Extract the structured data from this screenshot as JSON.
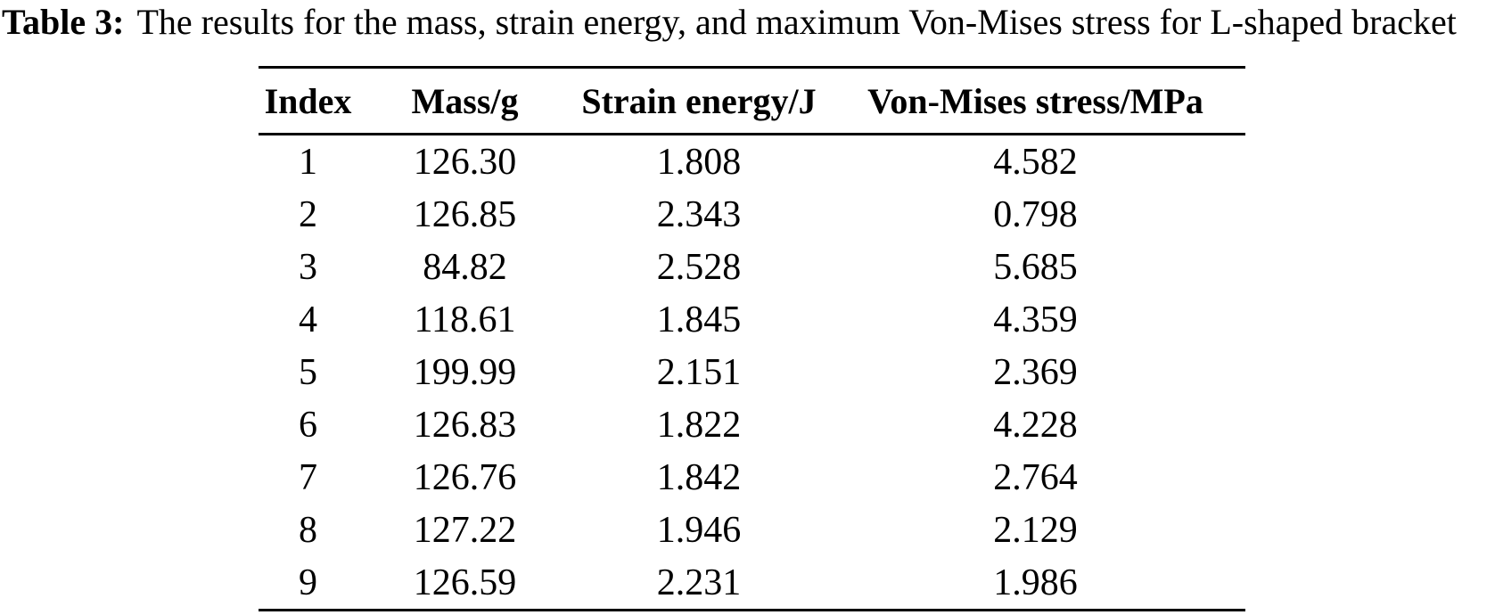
{
  "caption": {
    "label": "Table 3:",
    "text": "The results for the mass, strain energy, and maximum Von-Mises stress for L-shaped bracket"
  },
  "table": {
    "columns": [
      "Index",
      "Mass/g",
      "Strain energy/J",
      "Von-Mises stress/MPa"
    ],
    "rows": [
      [
        "1",
        "126.30",
        "1.808",
        "4.582"
      ],
      [
        "2",
        "126.85",
        "2.343",
        "0.798"
      ],
      [
        "3",
        "84.82",
        "2.528",
        "5.685"
      ],
      [
        "4",
        "118.61",
        "1.845",
        "4.359"
      ],
      [
        "5",
        "199.99",
        "2.151",
        "2.369"
      ],
      [
        "6",
        "126.83",
        "1.822",
        "4.228"
      ],
      [
        "7",
        "126.76",
        "1.842",
        "2.764"
      ],
      [
        "8",
        "127.22",
        "1.946",
        "2.129"
      ],
      [
        "9",
        "126.59",
        "2.231",
        "1.986"
      ]
    ]
  },
  "chart_data": {
    "type": "table",
    "title": "Table 3: The results for the mass, strain energy, and maximum Von-Mises stress for L-shaped bracket",
    "columns": [
      "Index",
      "Mass/g",
      "Strain energy/J",
      "Von-Mises stress/MPa"
    ],
    "index": [
      1,
      2,
      3,
      4,
      5,
      6,
      7,
      8,
      9
    ],
    "mass_g": [
      126.3,
      126.85,
      84.82,
      118.61,
      199.99,
      126.83,
      126.76,
      127.22,
      126.59
    ],
    "strain_energy_J": [
      1.808,
      2.343,
      2.528,
      1.845,
      2.151,
      1.822,
      1.842,
      1.946,
      2.231
    ],
    "von_mises_stress_MPa": [
      4.582,
      0.798,
      5.685,
      4.359,
      2.369,
      4.228,
      2.764,
      2.129,
      1.986
    ]
  },
  "colors": {
    "text": "#000000",
    "background": "#ffffff",
    "rule": "#000000"
  }
}
